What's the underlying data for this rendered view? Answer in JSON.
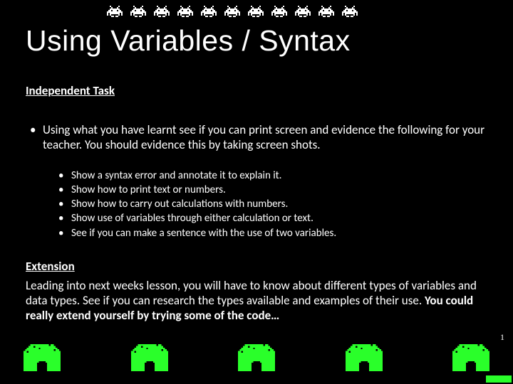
{
  "title": "Using Variables / Syntax",
  "section_heading": "Independent Task",
  "main_bullet": "Using what you have learnt see if you can print screen and evidence the following for your teacher. You should evidence this by taking screen shots.",
  "sub_bullets": [
    "Show a syntax error and annotate it to explain it.",
    "Show how to print text or numbers.",
    "Show how to carry out calculations with numbers.",
    "Show use of variables through either calculation or text.",
    "See if you can make a sentence with the use of two variables."
  ],
  "extension_heading": "Extension",
  "extension_body_plain": "Leading into next weeks lesson, you will have to know about different types of variables and data types. See if you can research the types available and examples of their use. ",
  "extension_body_bold": "You could really extend yourself by trying some of the code…",
  "page_number": "1",
  "colors": {
    "background": "#000000",
    "text": "#ffffff",
    "invader": "#ffffff",
    "bunker": "#2aff2a"
  },
  "invader_count": 11,
  "bunker_count": 5
}
